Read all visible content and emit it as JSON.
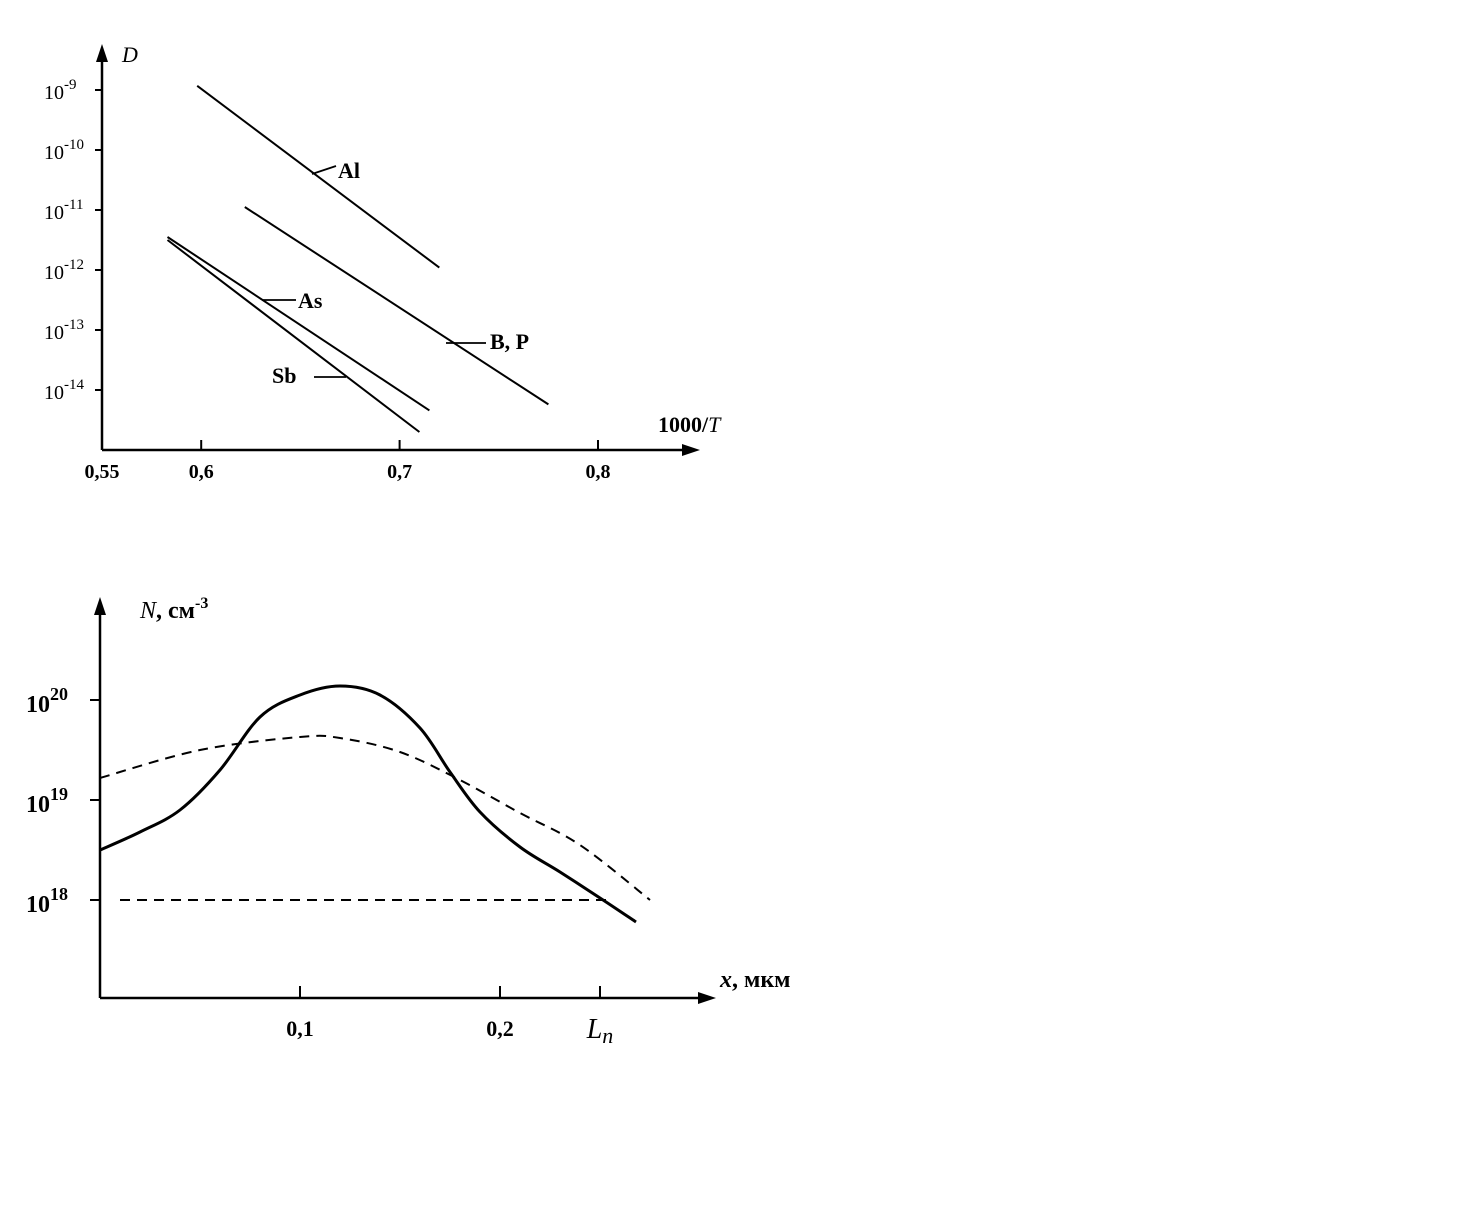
{
  "chart_data": [
    {
      "type": "line",
      "title": "",
      "xlabel": "1000/T",
      "xlabel_parts": [
        "1000/",
        "T"
      ],
      "ylabel": "D",
      "y_scale": "log",
      "xlim": [
        0.55,
        0.85
      ],
      "ylim": [
        1e-15,
        1e-09
      ],
      "x_ticks": [
        {
          "value": 0.55,
          "label": "0,55"
        },
        {
          "value": 0.6,
          "label": "0,6"
        },
        {
          "value": 0.7,
          "label": "0,7"
        },
        {
          "value": 0.8,
          "label": "0,8"
        }
      ],
      "y_ticks": [
        {
          "exp": -9,
          "base": "10",
          "power": "-9"
        },
        {
          "exp": -10,
          "base": "10",
          "power": "-10"
        },
        {
          "exp": -11,
          "base": "10",
          "power": "-11"
        },
        {
          "exp": -12,
          "base": "10",
          "power": "-12"
        },
        {
          "exp": -13,
          "base": "10",
          "power": "-13"
        },
        {
          "exp": -14,
          "base": "10",
          "power": "-14"
        }
      ],
      "series": [
        {
          "name": "Al",
          "x": [
            0.598,
            0.72
          ],
          "log10_y": [
            -8.93,
            -11.96
          ]
        },
        {
          "name": "B, P",
          "x": [
            0.622,
            0.775
          ],
          "log10_y": [
            -10.95,
            -14.24
          ]
        },
        {
          "name": "As",
          "x": [
            0.583,
            0.715
          ],
          "log10_y": [
            -11.45,
            -14.34
          ]
        },
        {
          "name": "Sb",
          "x": [
            0.583,
            0.71
          ],
          "log10_y": [
            -11.5,
            -14.7
          ]
        }
      ],
      "grid": false,
      "legend": "none"
    },
    {
      "type": "line",
      "title": "",
      "xlabel": "x, мкм",
      "xlabel_parts": [
        "x",
        ", мкм"
      ],
      "ylabel": "N, см-3",
      "ylabel_parts": [
        "N",
        ",  см",
        "-3"
      ],
      "y_scale": "log",
      "xlim": [
        0,
        0.3
      ],
      "ylim": [
        1e+17,
        1e+21
      ],
      "x_ticks": [
        {
          "value": 0.1,
          "label": "0,1"
        },
        {
          "value": 0.2,
          "label": "0,2"
        },
        {
          "value": 0.25,
          "label": "L",
          "sub": "n"
        }
      ],
      "y_ticks": [
        {
          "exp": 20,
          "base": "10",
          "power": "20"
        },
        {
          "exp": 19,
          "base": "10",
          "power": "19"
        },
        {
          "exp": 18,
          "base": "10",
          "power": "18"
        }
      ],
      "series": [
        {
          "style": "solid",
          "x": [
            0,
            0.02,
            0.04,
            0.06,
            0.08,
            0.1,
            0.12,
            0.14,
            0.16,
            0.175,
            0.19,
            0.21,
            0.23,
            0.25,
            0.268
          ],
          "log10_y": [
            18.5,
            18.68,
            18.9,
            19.3,
            19.83,
            20.05,
            20.14,
            20.05,
            19.72,
            19.28,
            18.88,
            18.53,
            18.28,
            18.02,
            17.78
          ]
        },
        {
          "style": "dashed",
          "x": [
            0,
            0.05,
            0.1,
            0.12,
            0.15,
            0.18,
            0.21,
            0.24,
            0.275
          ],
          "log10_y": [
            19.22,
            19.5,
            19.63,
            19.62,
            19.48,
            19.2,
            18.87,
            18.55,
            18.0
          ]
        },
        {
          "style": "dashed",
          "x": [
            0.01,
            0.256
          ],
          "log10_y": [
            18.0,
            18.0
          ]
        }
      ],
      "grid": false,
      "legend": "none"
    }
  ]
}
